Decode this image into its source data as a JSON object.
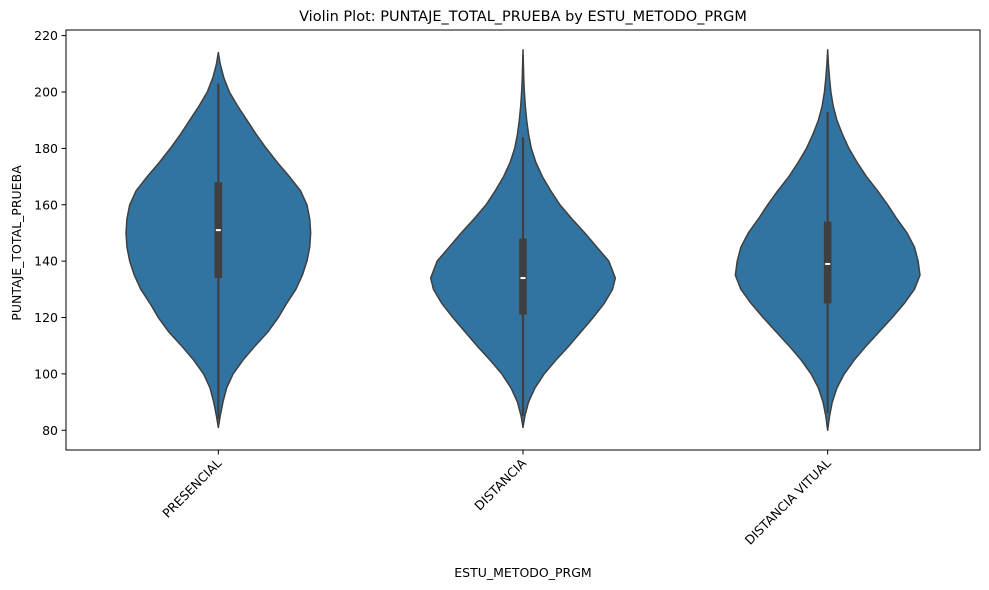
{
  "chart_data": {
    "type": "violin",
    "title": "Violin Plot: PUNTAJE_TOTAL_PRUEBA by ESTU_METODO_PRGM",
    "xlabel": "ESTU_METODO_PRGM",
    "ylabel": "PUNTAJE_TOTAL_PRUEBA",
    "ylim": [
      73,
      222
    ],
    "yticks": [
      80,
      100,
      120,
      140,
      160,
      180,
      200,
      220
    ],
    "categories": [
      "PRESENCIAL",
      "DISTANCIA",
      "DISTANCIA VITUAL"
    ],
    "grid": false,
    "legend": "none",
    "colors": {
      "fill": "#3274a1",
      "edge": "#3f3f3f",
      "box": "#3f3f3f",
      "median": "#ffffff"
    },
    "series": [
      {
        "category": "PRESENCIAL",
        "min": 81,
        "q1": 134,
        "median": 151,
        "q3": 168,
        "max": 214,
        "whisker_low": 84,
        "whisker_high": 203,
        "density": [
          [
            81,
            0.0
          ],
          [
            85,
            0.02
          ],
          [
            90,
            0.05
          ],
          [
            95,
            0.09
          ],
          [
            100,
            0.16
          ],
          [
            105,
            0.27
          ],
          [
            110,
            0.4
          ],
          [
            115,
            0.54
          ],
          [
            120,
            0.65
          ],
          [
            125,
            0.74
          ],
          [
            130,
            0.84
          ],
          [
            135,
            0.91
          ],
          [
            140,
            0.96
          ],
          [
            145,
            0.99
          ],
          [
            150,
            1.0
          ],
          [
            155,
            0.99
          ],
          [
            160,
            0.96
          ],
          [
            165,
            0.89
          ],
          [
            170,
            0.77
          ],
          [
            175,
            0.64
          ],
          [
            180,
            0.52
          ],
          [
            185,
            0.41
          ],
          [
            190,
            0.31
          ],
          [
            195,
            0.21
          ],
          [
            200,
            0.12
          ],
          [
            205,
            0.06
          ],
          [
            210,
            0.02
          ],
          [
            214,
            0.0
          ]
        ]
      },
      {
        "category": "DISTANCIA",
        "min": 81,
        "q1": 121,
        "median": 134,
        "q3": 148,
        "max": 215,
        "whisker_low": 85,
        "whisker_high": 184,
        "density": [
          [
            81,
            0.0
          ],
          [
            85,
            0.02
          ],
          [
            90,
            0.06
          ],
          [
            95,
            0.13
          ],
          [
            100,
            0.23
          ],
          [
            105,
            0.36
          ],
          [
            110,
            0.5
          ],
          [
            115,
            0.63
          ],
          [
            120,
            0.76
          ],
          [
            125,
            0.88
          ],
          [
            130,
            0.97
          ],
          [
            134,
            1.0
          ],
          [
            140,
            0.93
          ],
          [
            145,
            0.8
          ],
          [
            150,
            0.67
          ],
          [
            155,
            0.53
          ],
          [
            160,
            0.4
          ],
          [
            165,
            0.3
          ],
          [
            170,
            0.21
          ],
          [
            175,
            0.14
          ],
          [
            180,
            0.09
          ],
          [
            185,
            0.06
          ],
          [
            190,
            0.04
          ],
          [
            195,
            0.025
          ],
          [
            200,
            0.015
          ],
          [
            205,
            0.008
          ],
          [
            210,
            0.004
          ],
          [
            215,
            0.0
          ]
        ]
      },
      {
        "category": "DISTANCIA VITUAL",
        "min": 80,
        "q1": 125,
        "median": 139,
        "q3": 154,
        "max": 215,
        "whisker_low": 86,
        "whisker_high": 193,
        "density": [
          [
            80,
            0.0
          ],
          [
            85,
            0.02
          ],
          [
            90,
            0.05
          ],
          [
            95,
            0.1
          ],
          [
            100,
            0.18
          ],
          [
            105,
            0.29
          ],
          [
            110,
            0.42
          ],
          [
            115,
            0.56
          ],
          [
            120,
            0.7
          ],
          [
            125,
            0.83
          ],
          [
            130,
            0.94
          ],
          [
            135,
            1.0
          ],
          [
            140,
            0.98
          ],
          [
            145,
            0.94
          ],
          [
            150,
            0.86
          ],
          [
            155,
            0.75
          ],
          [
            160,
            0.65
          ],
          [
            165,
            0.54
          ],
          [
            170,
            0.42
          ],
          [
            175,
            0.32
          ],
          [
            180,
            0.23
          ],
          [
            185,
            0.16
          ],
          [
            190,
            0.1
          ],
          [
            195,
            0.06
          ],
          [
            200,
            0.035
          ],
          [
            205,
            0.02
          ],
          [
            210,
            0.008
          ],
          [
            215,
            0.0
          ]
        ]
      }
    ]
  }
}
